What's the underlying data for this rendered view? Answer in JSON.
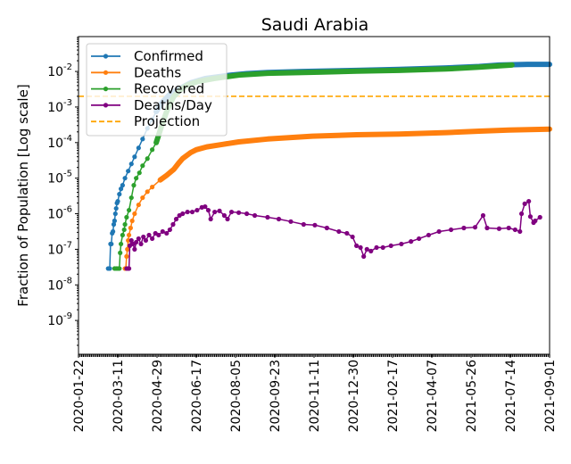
{
  "chart_data": {
    "type": "line",
    "title": "Saudi Arabia",
    "xlabel": "",
    "ylabel": "Fraction of Population [Log scale]",
    "yscale": "log",
    "ylim_log10": [
      -9.95,
      -1.02
    ],
    "xlim_days": [
      0,
      588
    ],
    "x_origin_date": "2020-01-22",
    "xtick_labels": [
      "2020-01-22",
      "2020-03-11",
      "2020-04-29",
      "2020-06-17",
      "2020-08-05",
      "2020-09-23",
      "2020-11-11",
      "2020-12-30",
      "2021-02-17",
      "2021-04-07",
      "2021-05-26",
      "2021-07-14",
      "2021-09-01"
    ],
    "ytick_exponents": [
      "-9",
      "-8",
      "-7",
      "-6",
      "-5",
      "-4",
      "-3",
      "-2"
    ],
    "ytick_base": "10",
    "legend_position": "upper-left",
    "projection": {
      "name": "Projection",
      "value_log10": -2.7,
      "color": "#ffa500"
    },
    "series": [
      {
        "name": "Confirmed",
        "color": "#1f77b4",
        "points_day_log10": [
          [
            37,
            -7.54
          ],
          [
            39,
            -7.54
          ],
          [
            40,
            -6.85
          ],
          [
            41,
            -6.85
          ],
          [
            42,
            -6.55
          ],
          [
            43,
            -6.5
          ],
          [
            44,
            -6.3
          ],
          [
            45,
            -6.2
          ],
          [
            46,
            -6.0
          ],
          [
            47,
            -5.85
          ],
          [
            48,
            -5.7
          ],
          [
            49,
            -5.65
          ],
          [
            51,
            -5.45
          ],
          [
            53,
            -5.3
          ],
          [
            55,
            -5.2
          ],
          [
            58,
            -5.0
          ],
          [
            62,
            -4.8
          ],
          [
            66,
            -4.6
          ],
          [
            70,
            -4.4
          ],
          [
            75,
            -4.15
          ],
          [
            80,
            -3.9
          ],
          [
            86,
            -3.6
          ],
          [
            92,
            -3.35
          ],
          [
            97,
            -3.13
          ],
          [
            105,
            -2.85
          ],
          [
            115,
            -2.62
          ],
          [
            125,
            -2.5
          ],
          [
            140,
            -2.32
          ],
          [
            158,
            -2.2
          ],
          [
            175,
            -2.15
          ],
          [
            191,
            -2.1
          ],
          [
            210,
            -2.06
          ],
          [
            236,
            -2.03
          ],
          [
            280,
            -2.0
          ],
          [
            347,
            -1.97
          ],
          [
            400,
            -1.94
          ],
          [
            459,
            -1.9
          ],
          [
            500,
            -1.86
          ],
          [
            525,
            -1.82
          ],
          [
            560,
            -1.8
          ],
          [
            588,
            -1.8
          ]
        ]
      },
      {
        "name": "Deaths",
        "color": "#ff7f0e",
        "points_day_log10": [
          [
            58,
            -7.54
          ],
          [
            59,
            -7.54
          ],
          [
            60,
            -7.2
          ],
          [
            61,
            -7.0
          ],
          [
            62,
            -6.75
          ],
          [
            63,
            -6.6
          ],
          [
            65,
            -6.4
          ],
          [
            67,
            -6.2
          ],
          [
            70,
            -6.0
          ],
          [
            75,
            -5.75
          ],
          [
            80,
            -5.55
          ],
          [
            86,
            -5.38
          ],
          [
            92,
            -5.25
          ],
          [
            102,
            -5.05
          ],
          [
            110,
            -4.92
          ],
          [
            119,
            -4.75
          ],
          [
            125,
            -4.58
          ],
          [
            130,
            -4.45
          ],
          [
            140,
            -4.28
          ],
          [
            147,
            -4.2
          ],
          [
            160,
            -4.12
          ],
          [
            180,
            -4.05
          ],
          [
            200,
            -3.98
          ],
          [
            236,
            -3.9
          ],
          [
            292,
            -3.82
          ],
          [
            347,
            -3.78
          ],
          [
            400,
            -3.76
          ],
          [
            459,
            -3.72
          ],
          [
            500,
            -3.68
          ],
          [
            537,
            -3.65
          ],
          [
            588,
            -3.62
          ]
        ]
      },
      {
        "name": "Recovered",
        "color": "#2ca02c",
        "points_day_log10": [
          [
            45,
            -7.54
          ],
          [
            47,
            -7.54
          ],
          [
            49,
            -7.54
          ],
          [
            51,
            -7.54
          ],
          [
            52,
            -7.1
          ],
          [
            53,
            -6.85
          ],
          [
            55,
            -6.6
          ],
          [
            57,
            -6.45
          ],
          [
            58,
            -6.3
          ],
          [
            60,
            -6.1
          ],
          [
            63,
            -5.9
          ],
          [
            66,
            -5.55
          ],
          [
            69,
            -5.2
          ],
          [
            72,
            -5.0
          ],
          [
            76,
            -4.85
          ],
          [
            80,
            -4.65
          ],
          [
            86,
            -4.45
          ],
          [
            92,
            -4.2
          ],
          [
            97,
            -4.0
          ],
          [
            102,
            -3.65
          ],
          [
            108,
            -3.25
          ],
          [
            113,
            -2.95
          ],
          [
            119,
            -2.7
          ],
          [
            128,
            -2.5
          ],
          [
            136,
            -2.38
          ],
          [
            150,
            -2.28
          ],
          [
            169,
            -2.2
          ],
          [
            200,
            -2.1
          ],
          [
            236,
            -2.05
          ],
          [
            300,
            -2.02
          ],
          [
            347,
            -1.99
          ],
          [
            400,
            -1.97
          ],
          [
            459,
            -1.93
          ],
          [
            500,
            -1.88
          ],
          [
            541,
            -1.82
          ]
        ]
      },
      {
        "name": "Deaths/Day",
        "color": "#800080",
        "points_day_log10": [
          [
            60,
            -7.54
          ],
          [
            62,
            -7.54
          ],
          [
            63,
            -7.54
          ],
          [
            64,
            -6.9
          ],
          [
            66,
            -6.75
          ],
          [
            68,
            -6.85
          ],
          [
            70,
            -7.0
          ],
          [
            72,
            -6.8
          ],
          [
            75,
            -6.7
          ],
          [
            78,
            -6.85
          ],
          [
            81,
            -6.65
          ],
          [
            84,
            -6.75
          ],
          [
            88,
            -6.6
          ],
          [
            92,
            -6.7
          ],
          [
            96,
            -6.55
          ],
          [
            100,
            -6.6
          ],
          [
            105,
            -6.5
          ],
          [
            110,
            -6.55
          ],
          [
            114,
            -6.45
          ],
          [
            118,
            -6.3
          ],
          [
            122,
            -6.15
          ],
          [
            126,
            -6.05
          ],
          [
            130,
            -6.0
          ],
          [
            136,
            -5.95
          ],
          [
            142,
            -5.95
          ],
          [
            148,
            -5.9
          ],
          [
            154,
            -5.82
          ],
          [
            158,
            -5.8
          ],
          [
            162,
            -5.9
          ],
          [
            165,
            -6.15
          ],
          [
            170,
            -5.95
          ],
          [
            176,
            -5.92
          ],
          [
            182,
            -6.05
          ],
          [
            186,
            -6.15
          ],
          [
            191,
            -5.95
          ],
          [
            200,
            -5.97
          ],
          [
            210,
            -6.0
          ],
          [
            220,
            -6.05
          ],
          [
            236,
            -6.1
          ],
          [
            250,
            -6.15
          ],
          [
            265,
            -6.22
          ],
          [
            281,
            -6.3
          ],
          [
            295,
            -6.32
          ],
          [
            310,
            -6.4
          ],
          [
            325,
            -6.5
          ],
          [
            335,
            -6.55
          ],
          [
            342,
            -6.65
          ],
          [
            347,
            -6.9
          ],
          [
            352,
            -6.95
          ],
          [
            356,
            -7.2
          ],
          [
            360,
            -7.0
          ],
          [
            365,
            -7.05
          ],
          [
            372,
            -6.95
          ],
          [
            380,
            -6.95
          ],
          [
            390,
            -6.9
          ],
          [
            403,
            -6.85
          ],
          [
            415,
            -6.78
          ],
          [
            425,
            -6.7
          ],
          [
            437,
            -6.6
          ],
          [
            450,
            -6.5
          ],
          [
            465,
            -6.45
          ],
          [
            481,
            -6.4
          ],
          [
            495,
            -6.38
          ],
          [
            505,
            -6.05
          ],
          [
            510,
            -6.4
          ],
          [
            525,
            -6.42
          ],
          [
            537,
            -6.4
          ],
          [
            545,
            -6.45
          ],
          [
            551,
            -6.5
          ],
          [
            553,
            -6.0
          ],
          [
            557,
            -5.72
          ],
          [
            562,
            -5.65
          ],
          [
            564,
            -6.08
          ],
          [
            568,
            -6.25
          ],
          [
            570,
            -6.2
          ],
          [
            576,
            -6.1
          ]
        ]
      }
    ]
  }
}
